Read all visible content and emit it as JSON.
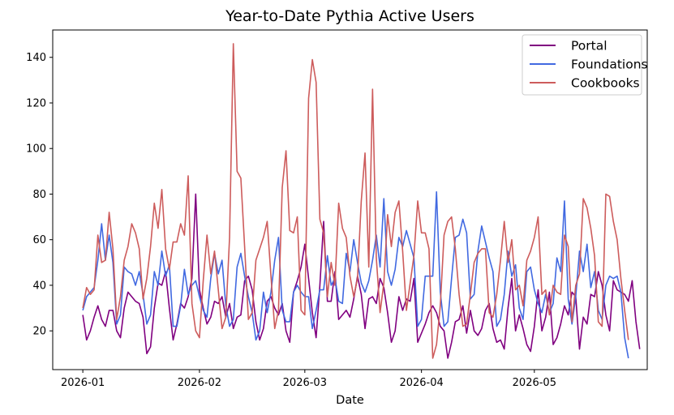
{
  "chart_data": {
    "type": "line",
    "title": "Year-to-Date Pythia Active Users",
    "xlabel": "Date",
    "ylabel": "",
    "x_start": "2026-01-01",
    "x_ticks": [
      "2026-01",
      "2026-02",
      "2026-03",
      "2026-04",
      "2026-05"
    ],
    "xlim": [
      "2025-12-24",
      "2026-05-31"
    ],
    "y_ticks": [
      20,
      40,
      60,
      80,
      100,
      120,
      140
    ],
    "ylim": [
      3,
      152
    ],
    "grid": false,
    "legend_position": "top-right",
    "series": [
      {
        "name": "Portal",
        "color": "#800080",
        "values": [
          27,
          16,
          20,
          26,
          31,
          25,
          22,
          29,
          29,
          20,
          17,
          30,
          37,
          35,
          33,
          32,
          26,
          10,
          13,
          30,
          41,
          40,
          46,
          30,
          16,
          23,
          32,
          30,
          35,
          43,
          80,
          38,
          30,
          23,
          26,
          33,
          32,
          35,
          26,
          32,
          21,
          26,
          27,
          42,
          44,
          38,
          24,
          16,
          21,
          33,
          35,
          30,
          27,
          32,
          20,
          15,
          37,
          42,
          48,
          58,
          43,
          28,
          17,
          40,
          68,
          33,
          33,
          46,
          25,
          27,
          29,
          26,
          34,
          44,
          36,
          21,
          34,
          35,
          32,
          43,
          39,
          28,
          15,
          20,
          35,
          29,
          34,
          33,
          43,
          15,
          19,
          23,
          28,
          31,
          28,
          22,
          20,
          8,
          15,
          24,
          25,
          31,
          19,
          29,
          20,
          18,
          21,
          29,
          32,
          21,
          15,
          16,
          12,
          30,
          43,
          20,
          27,
          21,
          14,
          11,
          22,
          38,
          20,
          26,
          37,
          14,
          17,
          23,
          31,
          27,
          37,
          35,
          12,
          26,
          23,
          36,
          35,
          46,
          40,
          27,
          20,
          42,
          38,
          37,
          36,
          33,
          42,
          24,
          12
        ]
      },
      {
        "name": "Foundations",
        "color": "#4169e1",
        "values": [
          29,
          35,
          37,
          39,
          51,
          67,
          51,
          62,
          50,
          23,
          27,
          48,
          46,
          45,
          40,
          46,
          36,
          23,
          27,
          46,
          40,
          55,
          44,
          49,
          22,
          22,
          31,
          47,
          36,
          40,
          42,
          35,
          29,
          26,
          43,
          54,
          45,
          51,
          31,
          22,
          25,
          48,
          54,
          44,
          35,
          28,
          16,
          20,
          37,
          28,
          37,
          51,
          61,
          29,
          24,
          24,
          37,
          40,
          37,
          35,
          35,
          21,
          29,
          38,
          38,
          53,
          40,
          43,
          33,
          32,
          54,
          46,
          60,
          50,
          41,
          37,
          42,
          51,
          62,
          48,
          78,
          46,
          40,
          47,
          61,
          57,
          64,
          58,
          52,
          22,
          25,
          44,
          44,
          44,
          81,
          37,
          22,
          24,
          43,
          61,
          62,
          69,
          63,
          34,
          36,
          55,
          66,
          59,
          52,
          46,
          22,
          25,
          36,
          55,
          44,
          49,
          30,
          25,
          46,
          48,
          38,
          32,
          28,
          36,
          28,
          32,
          52,
          46,
          77,
          34,
          23,
          35,
          55,
          46,
          58,
          39,
          46,
          29,
          25,
          40,
          44,
          43,
          44,
          37,
          17,
          8
        ]
      },
      {
        "name": "Cookbooks",
        "color": "#cd5c5c",
        "values": [
          30,
          39,
          36,
          38,
          62,
          50,
          51,
          72,
          56,
          25,
          35,
          51,
          57,
          67,
          63,
          56,
          34,
          43,
          57,
          76,
          65,
          82,
          56,
          47,
          59,
          59,
          67,
          62,
          88,
          32,
          20,
          17,
          42,
          62,
          45,
          55,
          38,
          21,
          26,
          61,
          146,
          90,
          87,
          57,
          25,
          28,
          51,
          56,
          61,
          68,
          44,
          21,
          29,
          83,
          99,
          64,
          63,
          70,
          29,
          27,
          122,
          139,
          129,
          69,
          63,
          35,
          50,
          40,
          76,
          65,
          61,
          44,
          35,
          43,
          77,
          98,
          48,
          126,
          52,
          28,
          41,
          71,
          57,
          72,
          77,
          55,
          29,
          41,
          53,
          77,
          63,
          63,
          56,
          8,
          14,
          31,
          62,
          68,
          70,
          56,
          36,
          22,
          23,
          36,
          50,
          54,
          56,
          56,
          28,
          26,
          36,
          51,
          68,
          50,
          60,
          38,
          40,
          31,
          51,
          55,
          61,
          70,
          36,
          38,
          27,
          40,
          37,
          36,
          62,
          57,
          24,
          40,
          45,
          78,
          74,
          65,
          53,
          24,
          22,
          80,
          79,
          68,
          60,
          43,
          29,
          16
        ]
      }
    ]
  }
}
